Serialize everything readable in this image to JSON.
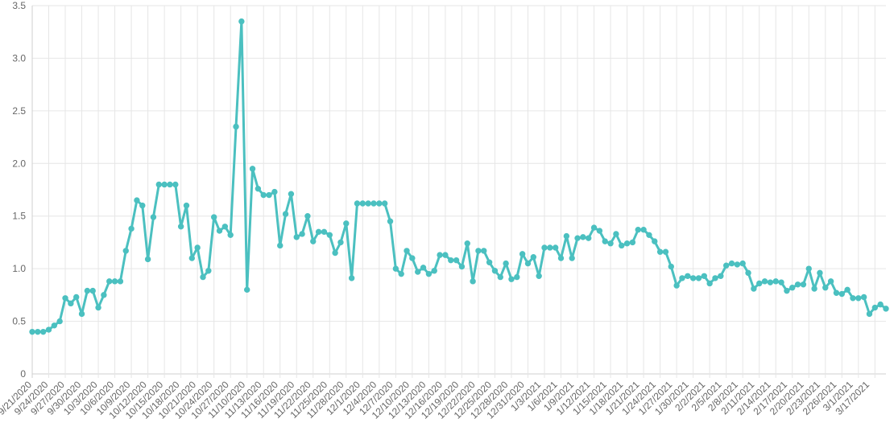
{
  "chart_data": {
    "type": "line",
    "title": "",
    "xlabel": "",
    "ylabel": "",
    "ylim": [
      0,
      3.5
    ],
    "yticks": [
      "0",
      "0.5",
      "1.0",
      "1.5",
      "2.0",
      "2.5",
      "3.0",
      "3.5"
    ],
    "grid": true,
    "legend": "none",
    "line_color": "#4bc0c0",
    "start_date": "9/21/2020",
    "xticks": [
      "9/21/2020",
      "9/24/2020",
      "9/27/2020",
      "9/30/2020",
      "10/3/2020",
      "10/6/2020",
      "10/9/2020",
      "10/12/2020",
      "10/15/2020",
      "10/18/2020",
      "10/21/2020",
      "10/24/2020",
      "10/27/2020",
      "11/10/2020",
      "11/13/2020",
      "11/16/2020",
      "11/19/2020",
      "11/22/2020",
      "11/25/2020",
      "11/28/2020",
      "12/1/2020",
      "12/4/2020",
      "12/7/2020",
      "12/10/2020",
      "12/13/2020",
      "12/16/2020",
      "12/19/2020",
      "12/22/2020",
      "12/25/2020",
      "12/28/2020",
      "12/31/2020",
      "1/3/2021",
      "1/6/2021",
      "1/9/2021",
      "1/12/2021",
      "1/15/2021",
      "1/18/2021",
      "1/21/2021",
      "1/24/2021",
      "1/27/2021",
      "1/30/2021",
      "2/2/2021",
      "2/5/2021",
      "2/8/2021",
      "2/11/2021",
      "2/14/2021",
      "2/17/2021",
      "2/20/2021",
      "2/23/2021",
      "2/26/2021",
      "3/1/2021",
      "3/17/2021"
    ],
    "values": [
      0.4,
      0.4,
      0.4,
      0.42,
      0.46,
      0.5,
      0.72,
      0.67,
      0.73,
      0.57,
      0.79,
      0.79,
      0.63,
      0.75,
      0.88,
      0.88,
      0.88,
      1.17,
      1.38,
      1.65,
      1.6,
      1.09,
      1.49,
      1.8,
      1.8,
      1.8,
      1.8,
      1.4,
      1.6,
      1.1,
      1.2,
      0.92,
      0.98,
      1.49,
      1.36,
      1.4,
      1.32,
      2.35,
      3.35,
      0.8,
      1.95,
      1.76,
      1.7,
      1.7,
      1.73,
      1.22,
      1.52,
      1.71,
      1.3,
      1.33,
      1.5,
      1.26,
      1.35,
      1.35,
      1.32,
      1.15,
      1.25,
      1.43,
      0.91,
      1.62,
      1.62,
      1.62,
      1.62,
      1.62,
      1.62,
      1.45,
      1.0,
      0.95,
      1.17,
      1.1,
      0.97,
      1.01,
      0.95,
      0.98,
      1.13,
      1.13,
      1.08,
      1.08,
      1.02,
      1.24,
      0.88,
      1.17,
      1.17,
      1.06,
      0.98,
      0.92,
      1.05,
      0.9,
      0.92,
      1.14,
      1.05,
      1.11,
      0.93,
      1.2,
      1.2,
      1.2,
      1.1,
      1.31,
      1.1,
      1.29,
      1.3,
      1.29,
      1.39,
      1.36,
      1.26,
      1.24,
      1.33,
      1.22,
      1.24,
      1.25,
      1.37,
      1.37,
      1.32,
      1.26,
      1.16,
      1.16,
      1.02,
      0.84,
      0.91,
      0.93,
      0.91,
      0.91,
      0.93,
      0.86,
      0.91,
      0.93,
      1.03,
      1.05,
      1.04,
      1.05,
      0.96,
      0.81,
      0.86,
      0.88,
      0.87,
      0.88,
      0.87,
      0.79,
      0.82,
      0.85,
      0.85,
      1.0,
      0.81,
      0.96,
      0.82,
      0.88,
      0.77,
      0.76,
      0.8,
      0.72,
      0.72,
      0.73,
      0.57,
      0.63,
      0.66,
      0.62
    ]
  }
}
